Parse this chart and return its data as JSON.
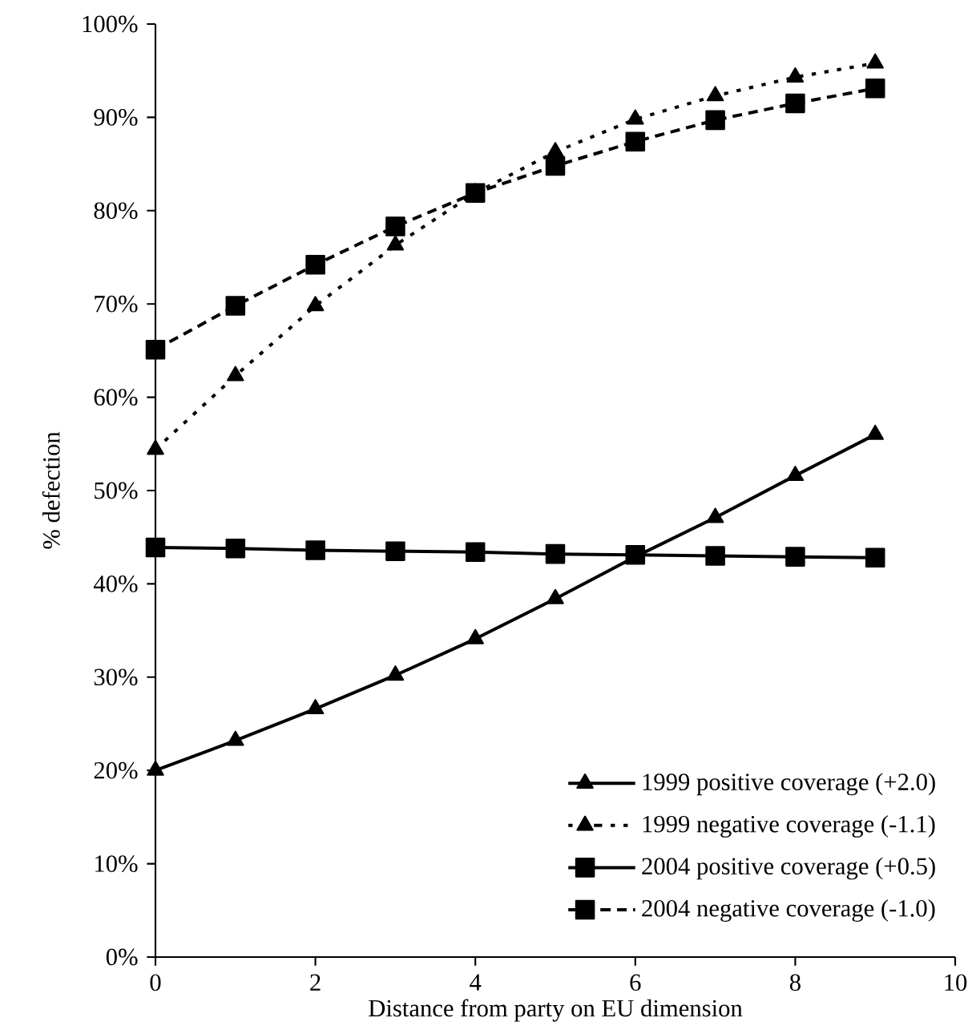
{
  "chart_data": {
    "type": "line",
    "xlabel": "Distance from party on EU dimension",
    "ylabel": "% defection",
    "x": [
      0,
      1,
      2,
      3,
      4,
      5,
      6,
      7,
      8,
      9
    ],
    "xlim": [
      0,
      10
    ],
    "xticks": [
      0,
      2,
      4,
      6,
      8,
      10
    ],
    "ylim": [
      0,
      100
    ],
    "yticks": [
      {
        "value": 0,
        "label": "0%"
      },
      {
        "value": 10,
        "label": "10%"
      },
      {
        "value": 20,
        "label": "20%"
      },
      {
        "value": 30,
        "label": "30%"
      },
      {
        "value": 40,
        "label": "40%"
      },
      {
        "value": 50,
        "label": "50%"
      },
      {
        "value": 60,
        "label": "60%"
      },
      {
        "value": 70,
        "label": "70%"
      },
      {
        "value": 80,
        "label": "80%"
      },
      {
        "value": 90,
        "label": "90%"
      },
      {
        "value": 100,
        "label": "100%"
      }
    ],
    "grid": false,
    "legend": "bottom right",
    "series": [
      {
        "name": "1999 positive coverage (+2.0)",
        "color": "#000000",
        "marker": "triangle",
        "line_style": "solid",
        "values": [
          20.0,
          23.2,
          26.6,
          30.2,
          34.1,
          38.4,
          42.9,
          47.1,
          51.6,
          56.0
        ]
      },
      {
        "name": "1999 negative coverage (-1.1)",
        "color": "#000000",
        "marker": "triangle",
        "line_style": "dotted",
        "values": [
          54.4,
          62.3,
          69.8,
          76.3,
          81.9,
          86.3,
          89.8,
          92.3,
          94.3,
          95.8
        ]
      },
      {
        "name": "2004 positive coverage (+0.5)",
        "color": "#000000",
        "marker": "square",
        "line_style": "solid",
        "values": [
          43.9,
          43.8,
          43.6,
          43.5,
          43.4,
          43.2,
          43.1,
          43.0,
          42.9,
          42.8
        ]
      },
      {
        "name": "2004 negative coverage (-1.0)",
        "color": "#000000",
        "marker": "square",
        "line_style": "dashed",
        "values": [
          65.1,
          69.8,
          74.2,
          78.3,
          81.9,
          84.8,
          87.4,
          89.7,
          91.5,
          93.1
        ]
      }
    ]
  }
}
